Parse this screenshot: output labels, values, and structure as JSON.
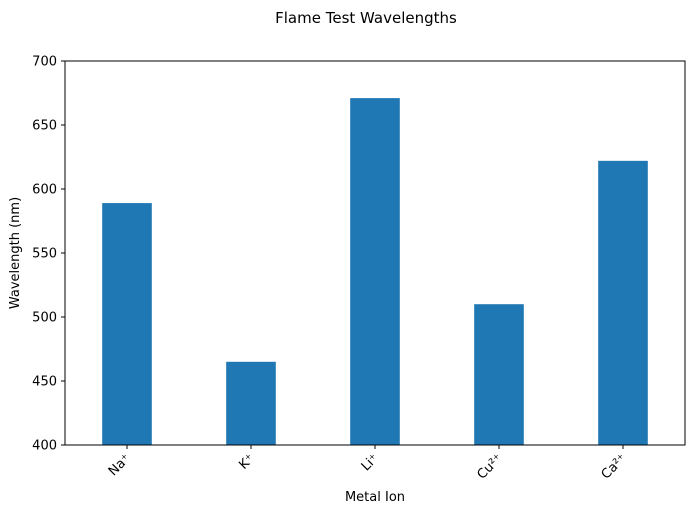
{
  "chart_data": {
    "type": "bar",
    "title": "Flame Test Wavelengths",
    "xlabel": "Metal Ion",
    "ylabel": "Wavelength (nm)",
    "categories": [
      "Na⁺",
      "K⁺",
      "Li⁺",
      "Cu²⁺",
      "Ca²⁺"
    ],
    "values": [
      589,
      465,
      671,
      510,
      622
    ],
    "ylim": [
      400,
      700
    ],
    "yticks": [
      400,
      450,
      500,
      550,
      600,
      650,
      700
    ],
    "grid": false,
    "bar_color": "#1f77b4",
    "xtick_rotation": -45
  }
}
